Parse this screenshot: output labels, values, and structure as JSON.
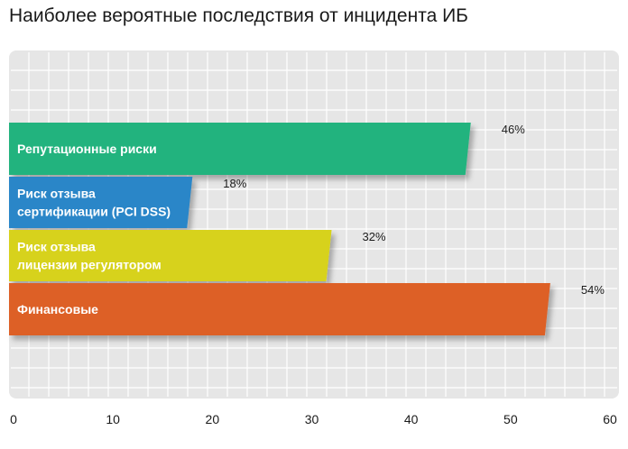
{
  "title": "Наиболее вероятные последствия от инцидента ИБ",
  "colors": {
    "panel": "#e6e6e6",
    "grid": "#ffffff",
    "text": "#1a1a1a",
    "bar_label": "#ffffff"
  },
  "chart_data": {
    "type": "bar",
    "orientation": "horizontal",
    "categories": [
      "Репутационные риски",
      "Риск отзыва сертификации (PCI DSS)",
      "Риск отзыва лицензии регулятором",
      "Финансовые"
    ],
    "category_lines": [
      [
        "Репутационные риски"
      ],
      [
        "Риск отзыва",
        "сертификации (PCI DSS)"
      ],
      [
        "Риск отзыва",
        "лицензии регулятором"
      ],
      [
        "Финансовые"
      ]
    ],
    "values": [
      46,
      18,
      32,
      54
    ],
    "value_labels": [
      "46%",
      "18%",
      "32%",
      "54%"
    ],
    "bar_colors": [
      "#21b37e",
      "#2a86c8",
      "#d7d21c",
      "#dd6027"
    ],
    "xlim": [
      0,
      60
    ],
    "xticks": [
      "0",
      "10",
      "20",
      "30",
      "40",
      "50",
      "60"
    ],
    "grid": true,
    "legend": "none"
  }
}
